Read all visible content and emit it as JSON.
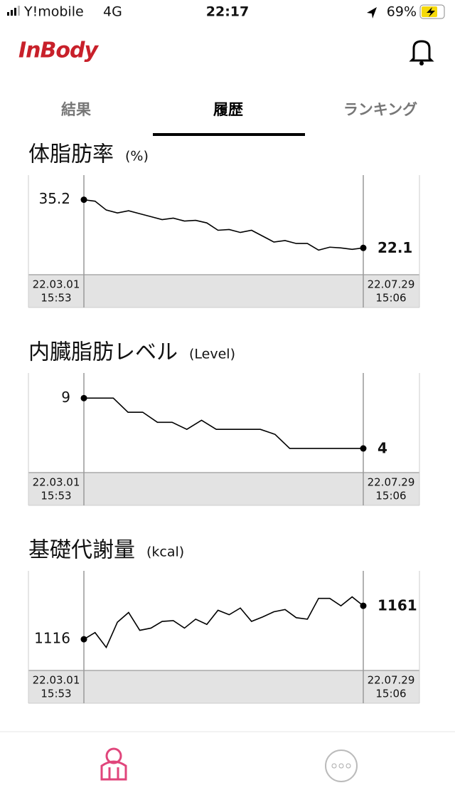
{
  "status_bar": {
    "carrier": "Y!mobile",
    "network": "4G",
    "time": "22:17",
    "battery": "69%"
  },
  "header": {
    "logo": "InBody"
  },
  "tabs": {
    "items": [
      "結果",
      "履歴",
      "ランキング"
    ],
    "active": 1
  },
  "chart_data": [
    {
      "type": "line",
      "title": "体脂肪率",
      "unit": "(%)",
      "color": "#000000",
      "values": [
        35.2,
        34.8,
        32.4,
        31.6,
        32.2,
        31.4,
        30.6,
        29.8,
        30.2,
        29.4,
        29.6,
        28.9,
        26.9,
        27.1,
        26.3,
        26.9,
        25.3,
        23.7,
        24.1,
        23.3,
        23.3,
        21.5,
        22.3,
        22.1,
        21.7,
        22.1
      ],
      "ylim": [
        14.8,
        41.9
      ],
      "start": {
        "date": "22.03.01",
        "time": "15:53"
      },
      "end": {
        "date": "22.07.29",
        "time": "15:06"
      }
    },
    {
      "type": "line",
      "title": "内臓脂肪レベル",
      "unit": "(Level)",
      "color": "#000000",
      "values": [
        9,
        9,
        9,
        7.6,
        7.6,
        6.6,
        6.6,
        5.9,
        6.8,
        5.9,
        5.9,
        5.9,
        5.9,
        5.4,
        4,
        4,
        4,
        4,
        4,
        4
      ],
      "ylim": [
        1.6,
        11.5
      ],
      "start": {
        "date": "22.03.01",
        "time": "15:53"
      },
      "end": {
        "date": "22.07.29",
        "time": "15:06"
      }
    },
    {
      "type": "line",
      "title": "基礎代謝量",
      "unit": "(kcal)",
      "color": "#000000",
      "values": [
        1116,
        1125,
        1105,
        1139,
        1152,
        1128,
        1131,
        1140,
        1141,
        1131,
        1143,
        1136,
        1155,
        1149,
        1158,
        1140,
        1146,
        1153,
        1156,
        1145,
        1143,
        1171,
        1171,
        1161,
        1173,
        1161
      ],
      "ylim": [
        1074,
        1208
      ],
      "start": {
        "date": "22.03.01",
        "time": "15:53"
      },
      "end": {
        "date": "22.07.29",
        "time": "15:06"
      }
    }
  ]
}
